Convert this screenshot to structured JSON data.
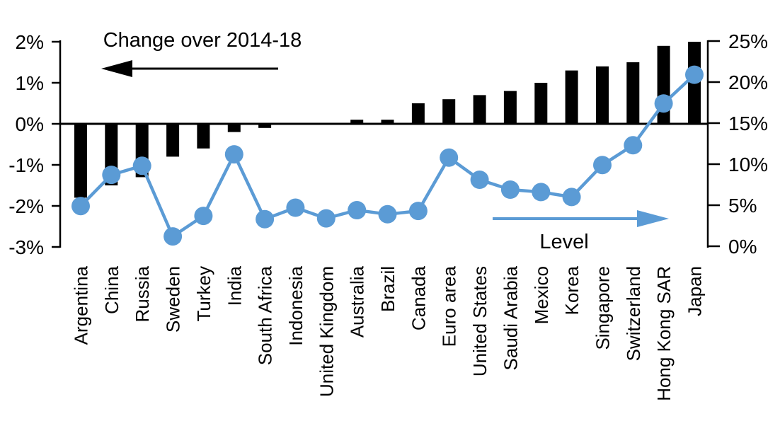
{
  "chart_data": {
    "type": "combo",
    "title": "",
    "categories": [
      "Argentina",
      "China",
      "Russia",
      "Sweden",
      "Turkey",
      "India",
      "South Africa",
      "Indonesia",
      "United Kingdom",
      "Australia",
      "Brazil",
      "Canada",
      "Euro area",
      "United States",
      "Saudi Arabia",
      "Mexico",
      "Korea",
      "Singapore",
      "Switzerland",
      "Hong Kong SAR",
      "Japan"
    ],
    "series": [
      {
        "name": "Change over 2014-18",
        "type": "bar",
        "axis": "left",
        "color": "#000000",
        "values": [
          -1.8,
          -1.5,
          -1.3,
          -0.8,
          -0.6,
          -0.2,
          -0.1,
          0.0,
          0.0,
          0.1,
          0.1,
          0.5,
          0.6,
          0.7,
          0.8,
          1.0,
          1.3,
          1.4,
          1.5,
          1.9,
          2.0
        ]
      },
      {
        "name": "Level",
        "type": "line",
        "axis": "right",
        "color": "#5b9bd5",
        "values": [
          4.9,
          8.7,
          9.8,
          1.2,
          3.7,
          11.2,
          3.3,
          4.7,
          3.4,
          4.4,
          3.9,
          4.3,
          10.8,
          8.1,
          6.9,
          6.6,
          6.0,
          9.9,
          12.3,
          17.4,
          20.9
        ]
      }
    ],
    "left_axis": {
      "min": -3,
      "max": 2,
      "tick_values": [
        2,
        1,
        0,
        -1,
        -2,
        -3
      ],
      "tick_labels": [
        "2%",
        "1%",
        "0%",
        "-1%",
        "-2%",
        "-3%"
      ]
    },
    "right_axis": {
      "min": 0,
      "max": 25,
      "tick_values": [
        25,
        20,
        15,
        10,
        5,
        0
      ],
      "tick_labels": [
        "25%",
        "20%",
        "15%",
        "10%",
        "5%",
        "0%"
      ]
    },
    "annotations": {
      "bar_label": "Change over 2014-18",
      "line_label": "Level"
    },
    "grid": false,
    "legend_position": "inline-annotations-with-arrows"
  },
  "colors": {
    "bar": "#000000",
    "line": "#5b9bd5",
    "text": "#000000",
    "background": "#ffffff"
  }
}
